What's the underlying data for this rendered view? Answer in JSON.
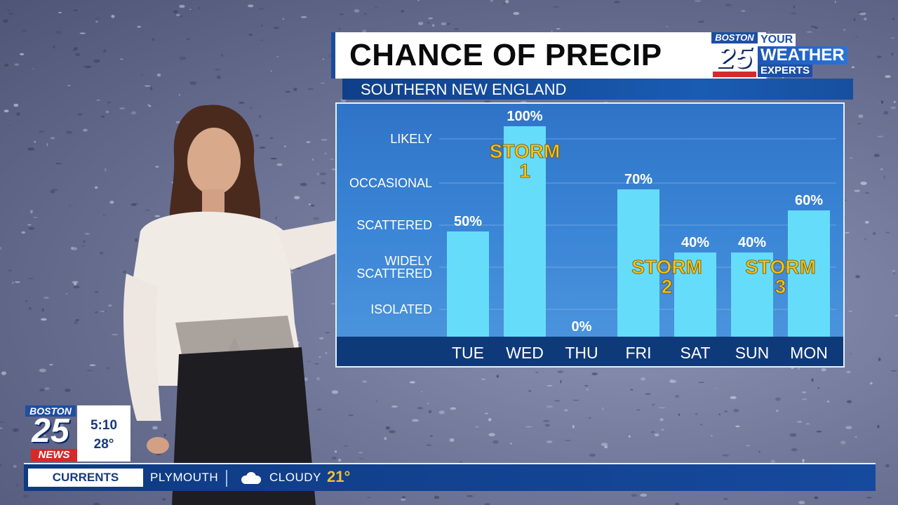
{
  "header": {
    "title": "CHANCE OF PRECIP",
    "subtitle": "SOUTHERN NEW ENGLAND"
  },
  "brand": {
    "city": "BOSTON",
    "channel": "25",
    "tagline_your": "YOUR",
    "tagline_weather": "WEATHER",
    "tagline_experts": "EXPERTS",
    "news": "NEWS"
  },
  "clock": {
    "time": "5:10",
    "temp": "28°"
  },
  "ticker": {
    "label": "CURRENTS",
    "location": "PLYMOUTH",
    "condition": "CLOUDY",
    "temp": "21°",
    "icon": "cloudy-icon"
  },
  "colors": {
    "bar": "#66dcfb",
    "storm_label": "#f4c21c",
    "title_blue": "#1a4c9a"
  },
  "chart_data": {
    "type": "bar",
    "categories": [
      "TUE",
      "WED",
      "THU",
      "FRI",
      "SAT",
      "SUN",
      "MON"
    ],
    "values": [
      50,
      100,
      0,
      70,
      40,
      40,
      60
    ],
    "value_labels": [
      "50%",
      "100%",
      "0%",
      "70%",
      "40%",
      "40%",
      "60%"
    ],
    "ylim": [
      0,
      100
    ],
    "y_levels": [
      {
        "label": "LIKELY",
        "lines": [
          "LIKELY"
        ],
        "value": 94
      },
      {
        "label": "OCCASIONAL",
        "lines": [
          "OCCASIONAL"
        ],
        "value": 73
      },
      {
        "label": "SCATTERED",
        "lines": [
          "SCATTERED"
        ],
        "value": 53
      },
      {
        "label": "WIDELY SCATTERED",
        "lines": [
          "WIDELY",
          "SCATTERED"
        ],
        "value": 33
      },
      {
        "label": "ISOLATED",
        "lines": [
          "ISOLATED"
        ],
        "value": 13
      }
    ],
    "annotations": [
      {
        "text": "STORM 1",
        "lines": [
          "STORM",
          "1"
        ],
        "category": "WED",
        "value": 85
      },
      {
        "text": "STORM 2",
        "lines": [
          "STORM",
          "2"
        ],
        "category": "FRI-SAT",
        "value": 30
      },
      {
        "text": "STORM 3",
        "lines": [
          "STORM",
          "3"
        ],
        "category": "SUN-MON",
        "value": 30
      }
    ],
    "grid": true
  }
}
